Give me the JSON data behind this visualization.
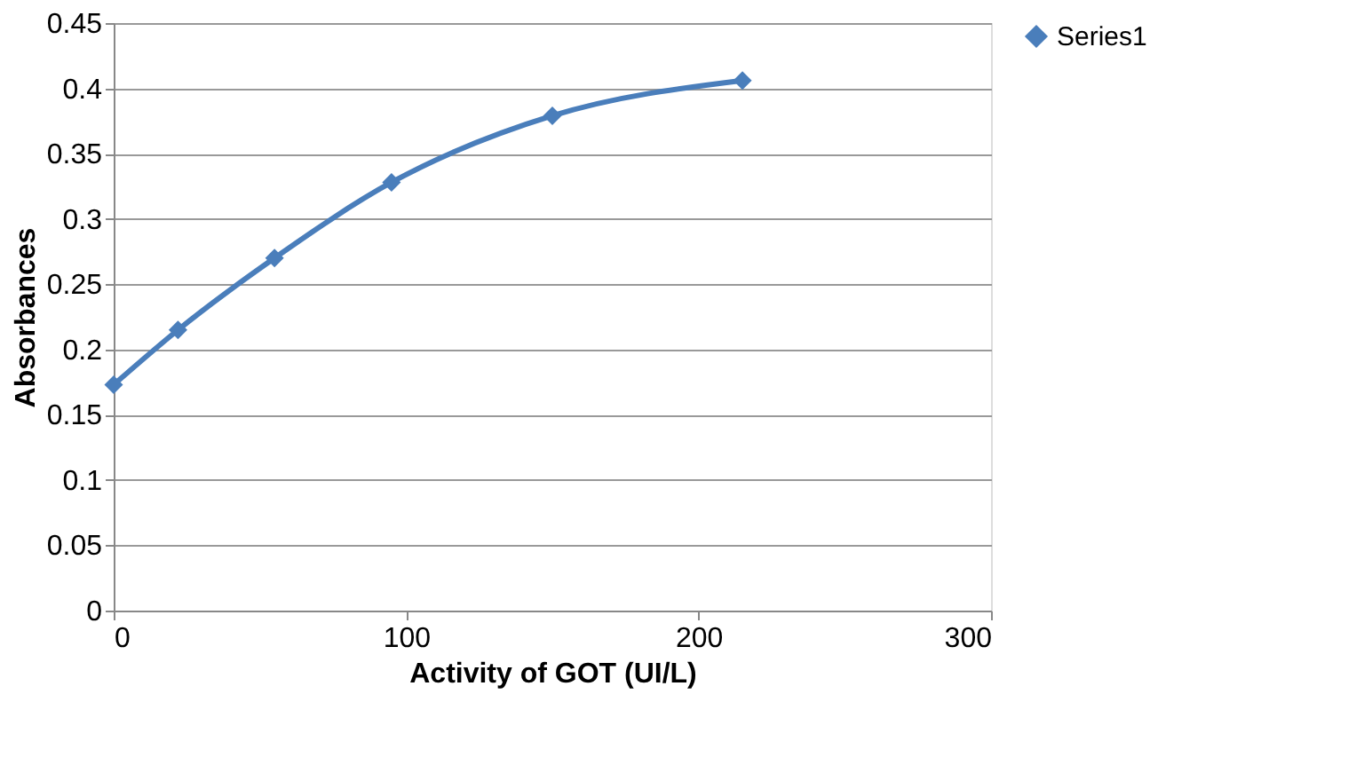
{
  "chart_data": {
    "type": "line",
    "xlabel": "Activity of GOT (UI/L)",
    "ylabel": "Absorbances",
    "x": [
      0,
      22,
      55,
      95,
      150,
      215
    ],
    "series": [
      {
        "name": "Series1",
        "color": "#4a7ebb",
        "values": [
          0.173,
          0.215,
          0.27,
          0.328,
          0.379,
          0.406
        ]
      }
    ],
    "xlim": [
      0,
      300
    ],
    "xticks": [
      0,
      100,
      200,
      300
    ],
    "ylim": [
      0,
      0.45
    ],
    "yticks": [
      0,
      0.05,
      0.1,
      0.15,
      0.2,
      0.25,
      0.3,
      0.35,
      0.4,
      0.45
    ],
    "grid": "y",
    "legend": "right",
    "marker": "diamond",
    "line_style": "solid"
  }
}
